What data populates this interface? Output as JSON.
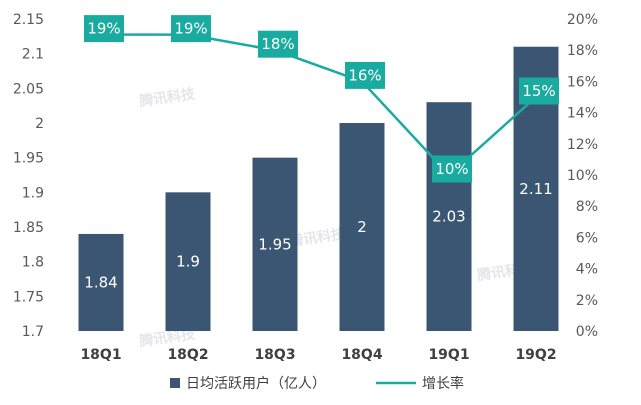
{
  "chart_data": {
    "type": "bar+line",
    "categories": [
      "18Q1",
      "18Q2",
      "18Q3",
      "18Q4",
      "19Q1",
      "19Q2"
    ],
    "series": [
      {
        "name": "日均活跃用户（亿人）",
        "type": "bar",
        "axis": "left",
        "values": [
          1.84,
          1.9,
          1.95,
          2,
          2.03,
          2.11
        ],
        "value_labels": [
          "1.84",
          "1.9",
          "1.95",
          "2",
          "2.03",
          "2.11"
        ],
        "color": "#3b5673"
      },
      {
        "name": "增长率",
        "type": "line",
        "axis": "right",
        "values": [
          19,
          19,
          18,
          16,
          10,
          15
        ],
        "value_labels": [
          "19%",
          "19%",
          "18%",
          "16%",
          "10%",
          "15%"
        ],
        "color": "#1aaba0"
      }
    ],
    "left_axis": {
      "ylim": [
        1.7,
        2.15
      ],
      "ticks": [
        1.7,
        1.75,
        1.8,
        1.85,
        1.9,
        1.95,
        2,
        2.05,
        2.1,
        2.15
      ],
      "tick_labels": [
        "1.7",
        "1.75",
        "1.8",
        "1.85",
        "1.9",
        "1.95",
        "2",
        "2.05",
        "2.1",
        "2.15"
      ]
    },
    "right_axis": {
      "ylim": [
        0,
        20
      ],
      "ticks": [
        0,
        2,
        4,
        6,
        8,
        10,
        12,
        14,
        16,
        18,
        20
      ],
      "tick_labels": [
        "0%",
        "2%",
        "4%",
        "6%",
        "8%",
        "10%",
        "12%",
        "14%",
        "16%",
        "18%",
        "20%"
      ]
    },
    "title": "",
    "grid": false,
    "legend_position": "bottom",
    "watermark": "腾讯科技"
  }
}
